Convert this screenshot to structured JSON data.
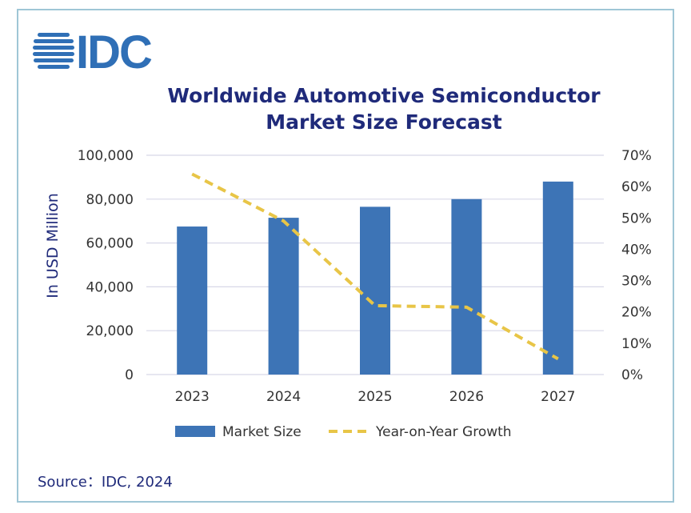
{
  "logo": {
    "text": "IDC",
    "color": "#2f6fb6"
  },
  "title_lines": [
    "Worldwide Automotive Semiconductor",
    "Market Size Forecast"
  ],
  "source": "Source：IDC, 2024",
  "colors": {
    "bar": "#3d74b6",
    "line": "#e8c547",
    "grid": "#d8d8e8",
    "title": "#1f2a7a",
    "border": "#9fc6d6"
  },
  "chart_data": {
    "type": "bar",
    "title": "Worldwide Automotive Semiconductor Market Size Forecast",
    "categories": [
      "2023",
      "2024",
      "2025",
      "2026",
      "2027"
    ],
    "ylabel": "In USD Million",
    "ylim": [
      0,
      100000
    ],
    "y_ticks": [
      "100,000",
      "80,000",
      "60,000",
      "40,000",
      "20,000",
      "0"
    ],
    "y2lim": [
      0,
      70
    ],
    "y2_ticks": [
      "70%",
      "60%",
      "50%",
      "40%",
      "30%",
      "20%",
      "10%",
      "0%"
    ],
    "grid": true,
    "legend_position": "bottom",
    "series": [
      {
        "name": "Market Size",
        "type": "bar",
        "axis": "left",
        "values": [
          67500,
          71500,
          76500,
          80000,
          88000
        ]
      },
      {
        "name": "Year-on-Year Growth",
        "type": "line",
        "style": "dashed",
        "axis": "right",
        "values": [
          64,
          49,
          22,
          21.5,
          5
        ]
      }
    ]
  }
}
